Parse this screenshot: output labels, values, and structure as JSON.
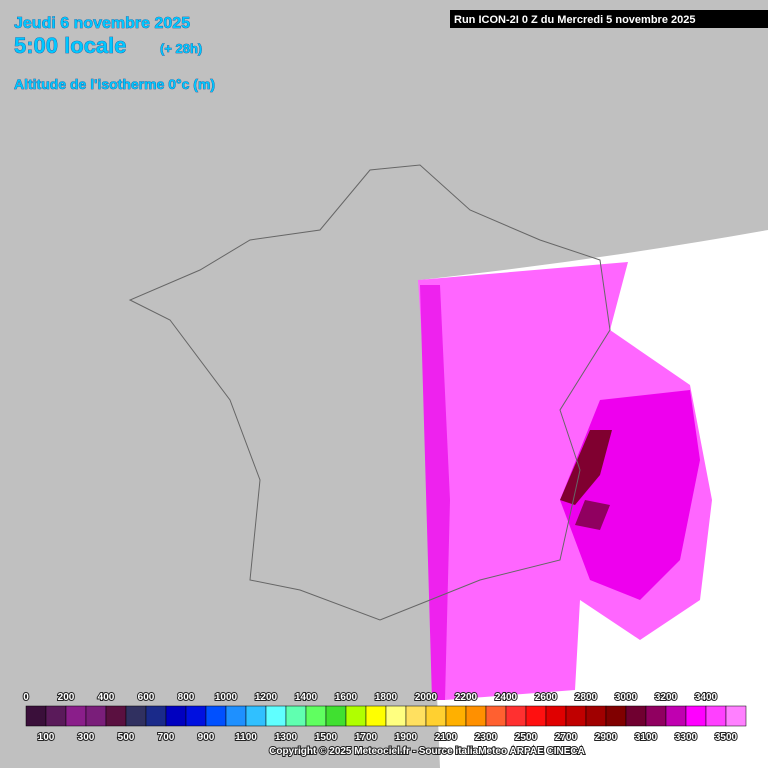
{
  "header": {
    "date": "Jeudi 6 novembre 2025",
    "time": "5:00 locale",
    "offset": "(+ 28h)",
    "parameter": "Altitude de l'isotherme 0°c (m)",
    "run": "Run ICON-2I 0 Z du Mercredi 5 novembre 2025"
  },
  "legend": {
    "steps": [
      0,
      100,
      200,
      300,
      400,
      500,
      600,
      700,
      800,
      900,
      1000,
      1100,
      1200,
      1300,
      1400,
      1500,
      1600,
      1700,
      1800,
      1900,
      2000,
      2100,
      2200,
      2300,
      2400,
      2500,
      2600,
      2700,
      2800,
      2900,
      3000,
      3100,
      3200,
      3300,
      3400,
      3500
    ],
    "colors": [
      "#3a0f3a",
      "#5a1a5a",
      "#8a1e8a",
      "#7a1e7a",
      "#5a1040",
      "#303060",
      "#1a2a8a",
      "#0000c0",
      "#0010e0",
      "#0050ff",
      "#1e90ff",
      "#30c0ff",
      "#60ffff",
      "#60ffb0",
      "#60ff60",
      "#40e030",
      "#b0ff00",
      "#ffff00",
      "#ffff80",
      "#ffe060",
      "#ffd030",
      "#ffb000",
      "#ff9000",
      "#ff6030",
      "#ff3030",
      "#ff1010",
      "#e00000",
      "#c00000",
      "#a00000",
      "#800000",
      "#700030",
      "#900060",
      "#c000b0",
      "#ff00ff",
      "#ff40ff",
      "#ff80ff"
    ]
  },
  "footer": {
    "copyright": "Copyright © 2025 Meteociel.fr - Source italiaMeteo ARPAE CINECA"
  }
}
